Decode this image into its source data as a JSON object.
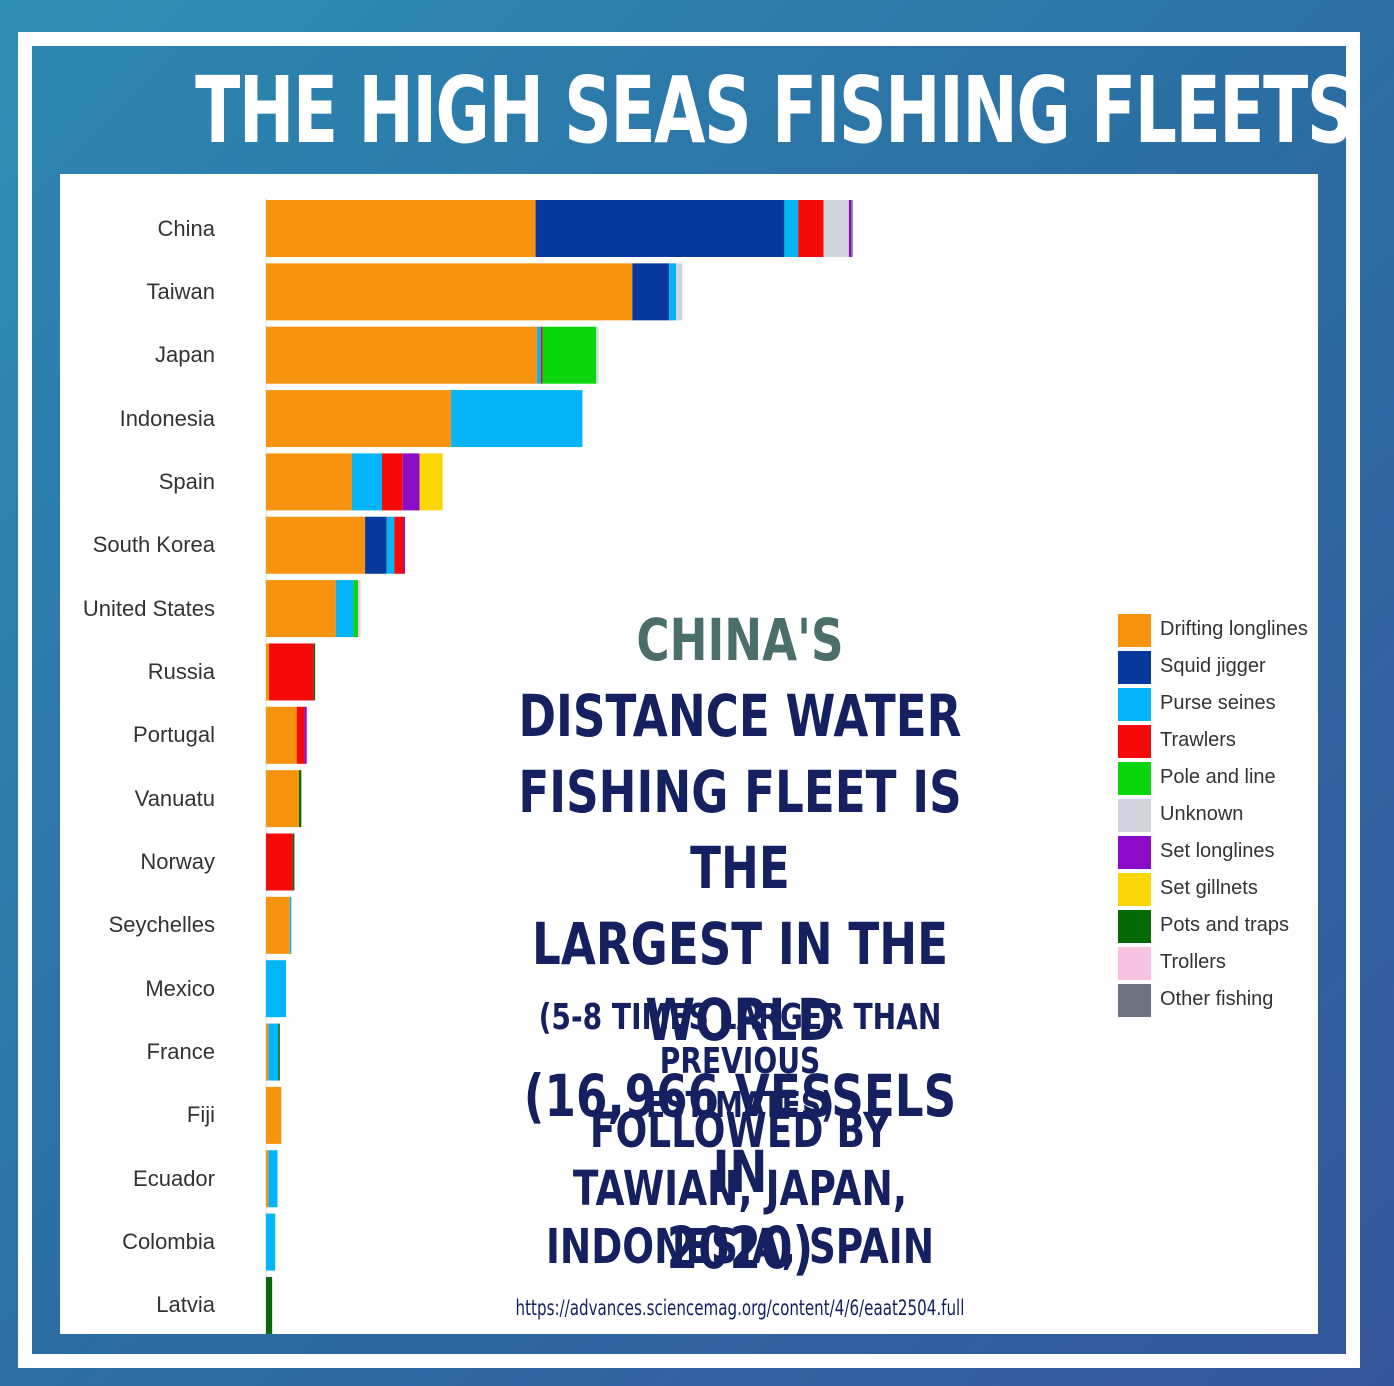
{
  "title": "THE HIGH SEAS FISHING FLEETS",
  "callout": {
    "accent": "CHINA'S",
    "line1_rest": " DISTANCE WATER",
    "line2": "FISHING FLEET IS THE",
    "line3": "LARGEST IN THE WORLD",
    "line4": "(16,966 VESSELS IN",
    "line5": "2020)",
    "sub1": "(5-8 TIMES LARGER THAN PREVIOUS",
    "sub2": "ESTIMATES)",
    "follow1": "FOLLOWED BY TAWIAN, JAPAN,",
    "follow2": "INDONESIA, SPAIN"
  },
  "source": "https://advances.sciencemag.org/content/4/6/eaat2504.full",
  "chart_data": {
    "type": "bar",
    "orientation": "horizontal",
    "stacked": true,
    "categories": [
      "China",
      "Taiwan",
      "Japan",
      "Indonesia",
      "Spain",
      "South Korea",
      "United States",
      "Russia",
      "Portugal",
      "Vanuatu",
      "Norway",
      "Seychelles",
      "Mexico",
      "France",
      "Fiji",
      "Ecuador",
      "Colombia",
      "Latvia"
    ],
    "series": [
      {
        "name": "Drifting longlines",
        "color": "#f7930f",
        "values": [
          351,
          477,
          353,
          241,
          112,
          129,
          91,
          4,
          40,
          43,
          0,
          31,
          0,
          3,
          20,
          3,
          0,
          0
        ]
      },
      {
        "name": "Squid jigger",
        "color": "#07389b",
        "values": [
          324,
          48,
          0,
          0,
          0,
          28,
          0,
          0,
          0,
          0,
          0,
          0,
          0,
          0,
          0,
          0,
          0,
          0
        ]
      },
      {
        "name": "Purse seines",
        "color": "#03b4f7",
        "values": [
          18,
          9,
          5,
          171,
          39,
          10,
          23,
          0,
          0,
          0,
          0,
          2,
          26,
          13,
          0,
          12,
          12,
          0
        ]
      },
      {
        "name": "Trawlers",
        "color": "#f40a0a",
        "values": [
          33,
          0,
          2,
          0,
          27,
          12,
          0,
          58,
          10,
          0,
          35,
          0,
          0,
          0,
          0,
          0,
          0,
          0
        ]
      },
      {
        "name": "Pole and line",
        "color": "#0bd50b",
        "values": [
          0,
          0,
          70,
          0,
          0,
          0,
          6,
          0,
          0,
          0,
          0,
          0,
          0,
          0,
          0,
          0,
          0,
          0
        ]
      },
      {
        "name": "Unknown",
        "color": "#d1d4dd",
        "values": [
          33,
          8,
          3,
          0,
          0,
          0,
          0,
          0,
          0,
          0,
          0,
          0,
          0,
          0,
          0,
          0,
          0,
          0
        ]
      },
      {
        "name": "Set longlines",
        "color": "#8c0bc8",
        "values": [
          3,
          0,
          0,
          0,
          22,
          2,
          0,
          0,
          3,
          0,
          0,
          0,
          0,
          0,
          0,
          0,
          0,
          0
        ]
      },
      {
        "name": "Set gillnets",
        "color": "#fbd607",
        "values": [
          0,
          0,
          0,
          0,
          30,
          0,
          0,
          0,
          0,
          0,
          0,
          0,
          0,
          0,
          0,
          0,
          0,
          0
        ]
      },
      {
        "name": "Pots and traps",
        "color": "#056a05",
        "values": [
          0,
          0,
          0,
          0,
          0,
          0,
          0,
          2,
          0,
          3,
          2,
          0,
          0,
          2,
          0,
          0,
          0,
          8
        ]
      },
      {
        "name": "Trollers",
        "color": "#f8c3e3",
        "values": [
          0,
          0,
          0,
          0,
          0,
          0,
          3,
          0,
          0,
          0,
          0,
          0,
          0,
          0,
          0,
          0,
          0,
          0
        ]
      },
      {
        "name": "Other fishing",
        "color": "#6d7280",
        "values": [
          2,
          0,
          0,
          0,
          0,
          0,
          0,
          0,
          0,
          0,
          0,
          0,
          0,
          0,
          0,
          0,
          0,
          0
        ]
      }
    ],
    "xlim": [
      0,
      1000
    ],
    "grid": false,
    "legend_position": "right"
  }
}
